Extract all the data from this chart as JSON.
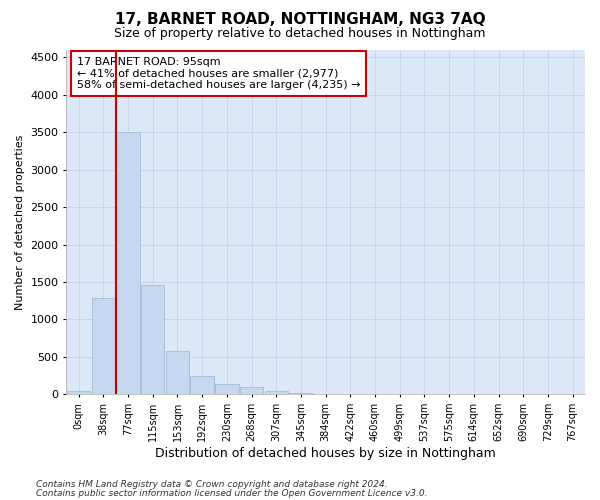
{
  "title": "17, BARNET ROAD, NOTTINGHAM, NG3 7AQ",
  "subtitle": "Size of property relative to detached houses in Nottingham",
  "xlabel": "Distribution of detached houses by size in Nottingham",
  "ylabel": "Number of detached properties",
  "bar_labels": [
    "0sqm",
    "38sqm",
    "77sqm",
    "115sqm",
    "153sqm",
    "192sqm",
    "230sqm",
    "268sqm",
    "307sqm",
    "345sqm",
    "384sqm",
    "422sqm",
    "460sqm",
    "499sqm",
    "537sqm",
    "575sqm",
    "614sqm",
    "652sqm",
    "690sqm",
    "729sqm",
    "767sqm"
  ],
  "bar_values": [
    50,
    1280,
    3500,
    1460,
    580,
    245,
    140,
    95,
    50,
    20,
    10,
    5,
    3,
    0,
    0,
    0,
    0,
    0,
    0,
    0,
    5
  ],
  "bar_color": "#c5d8f0",
  "bar_edgecolor": "#a0bcd8",
  "vline_index": 2,
  "vline_color": "#cc0000",
  "ylim": [
    0,
    4600
  ],
  "yticks": [
    0,
    500,
    1000,
    1500,
    2000,
    2500,
    3000,
    3500,
    4000,
    4500
  ],
  "ann_line1": "17 BARNET ROAD: 95sqm",
  "ann_line2": "← 41% of detached houses are smaller (2,977)",
  "ann_line3": "58% of semi-detached houses are larger (4,235) →",
  "ann_edgecolor": "#cc0000",
  "grid_color": "#c8d4e8",
  "bg_color": "#dce8f8",
  "footnote1": "Contains HM Land Registry data © Crown copyright and database right 2024.",
  "footnote2": "Contains public sector information licensed under the Open Government Licence v3.0.",
  "title_fontsize": 11,
  "subtitle_fontsize": 9,
  "ylabel_fontsize": 8,
  "xlabel_fontsize": 9,
  "ytick_fontsize": 8,
  "xtick_fontsize": 7,
  "ann_fontsize": 8,
  "footnote_fontsize": 6.5
}
